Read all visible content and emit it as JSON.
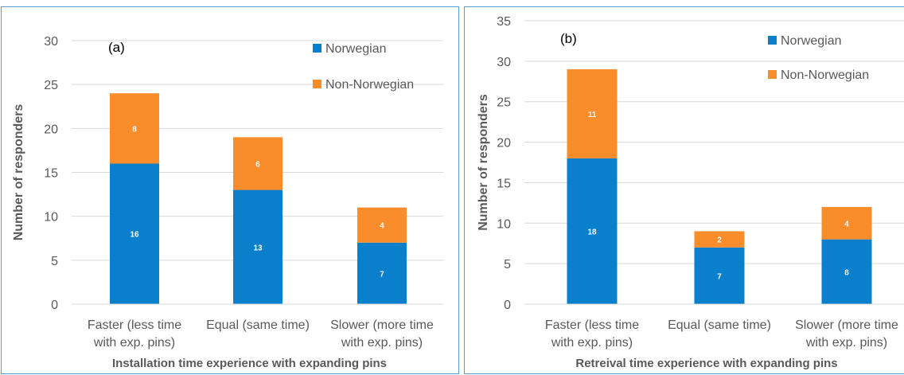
{
  "chart_data": [
    {
      "type": "bar",
      "stacked": true,
      "panel_label": "(a)",
      "categories": [
        [
          "Faster (less time",
          "with exp. pins)"
        ],
        [
          "Equal (same time)"
        ],
        [
          "Slower (more time",
          "with exp. pins)"
        ]
      ],
      "series": [
        {
          "name": "Norwegian",
          "values": [
            16,
            13,
            7
          ],
          "color": "#0a7fcc"
        },
        {
          "name": "Non-Norwegian",
          "values": [
            8,
            6,
            4
          ],
          "color": "#f98c2b"
        }
      ],
      "ylabel": "Number of responders",
      "xlabel": "Installation time experience with expanding pins",
      "ylim": [
        0,
        30
      ],
      "yticks": [
        0,
        5,
        10,
        15,
        20,
        25,
        30
      ],
      "grid": true,
      "legend_position": "top-right"
    },
    {
      "type": "bar",
      "stacked": true,
      "panel_label": "(b)",
      "categories": [
        [
          "Faster (less time",
          "with exp. pins)"
        ],
        [
          "Equal (same time)"
        ],
        [
          "Slower (more time",
          "with exp. pins)"
        ]
      ],
      "series": [
        {
          "name": "Norwegian",
          "values": [
            18,
            7,
            8
          ],
          "color": "#0a7fcc"
        },
        {
          "name": "Non-Norwegian",
          "values": [
            11,
            2,
            4
          ],
          "color": "#f98c2b"
        }
      ],
      "ylabel": "Number of responders",
      "xlabel": "Retreival time experience with expanding pins",
      "ylim": [
        0,
        35
      ],
      "yticks": [
        0,
        5,
        10,
        15,
        20,
        25,
        30,
        35
      ],
      "grid": true,
      "legend_position": "top-right"
    }
  ]
}
